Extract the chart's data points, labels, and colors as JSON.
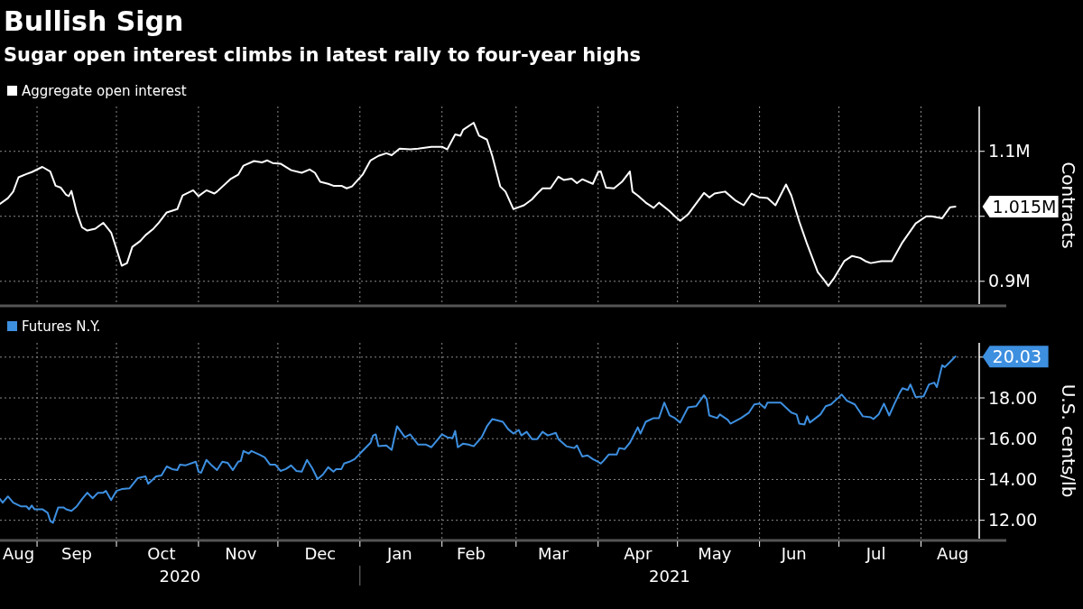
{
  "chart_data": [
    {
      "type": "line",
      "title": "Bullish Sign",
      "subtitle": "Sugar open interest climbs in latest rally to four-year highs",
      "ylabel": "Contracts",
      "legend": "top left",
      "grid": true,
      "tick_labels": "y",
      "xlim": [
        "2020-08-18",
        "2021-08-23"
      ],
      "ylim": [
        865000,
        1169000
      ],
      "yticks": [
        {
          "value": 900000,
          "label": "0.9M"
        },
        {
          "value": 1000000,
          "label": null
        },
        {
          "value": 1100000,
          "label": "1.1M"
        }
      ],
      "xticks": [
        {
          "value": "2020-09-01",
          "label": null
        },
        {
          "value": "2020-10-01",
          "label": null
        },
        {
          "value": "2020-11-01",
          "label": null
        },
        {
          "value": "2020-12-01",
          "label": null
        },
        {
          "value": "2021-01-01",
          "label": null
        },
        {
          "value": "2021-02-01",
          "label": null
        },
        {
          "value": "2021-03-01",
          "label": null
        },
        {
          "value": "2021-04-01",
          "label": null
        },
        {
          "value": "2021-05-01",
          "label": null
        },
        {
          "value": "2021-06-01",
          "label": null
        },
        {
          "value": "2021-07-01",
          "label": null
        },
        {
          "value": "2021-08-01",
          "label": null
        }
      ],
      "annotations": [
        {
          "text": "1.015M",
          "x": "2021-08-14",
          "y": 1015000
        }
      ],
      "series": [
        {
          "name": "Aggregate open interest",
          "color": "#ffffff",
          "x": [
            "2020-08-18",
            "2020-08-21",
            "2020-08-23",
            "2020-08-25",
            "2020-08-28",
            "2020-08-30",
            "2020-09-03",
            "2020-09-06",
            "2020-09-08",
            "2020-09-10",
            "2020-09-12",
            "2020-09-13",
            "2020-09-14",
            "2020-09-16",
            "2020-09-18",
            "2020-09-20",
            "2020-09-23",
            "2020-09-26",
            "2020-09-29",
            "2020-10-01",
            "2020-10-03",
            "2020-10-05",
            "2020-10-07",
            "2020-10-10",
            "2020-10-12",
            "2020-10-15",
            "2020-10-17",
            "2020-10-20",
            "2020-10-24",
            "2020-10-26",
            "2020-10-30",
            "2020-11-01",
            "2020-11-04",
            "2020-11-07",
            "2020-11-08",
            "2020-11-13",
            "2020-11-16",
            "2020-11-18",
            "2020-11-22",
            "2020-11-25",
            "2020-11-27",
            "2020-11-29",
            "2020-12-02",
            "2020-12-06",
            "2020-12-10",
            "2020-12-13",
            "2020-12-15",
            "2020-12-17",
            "2020-12-20",
            "2020-12-22",
            "2020-12-25",
            "2020-12-27",
            "2020-12-29",
            "2021-01-02",
            "2021-01-05",
            "2021-01-08",
            "2021-01-11",
            "2021-01-13",
            "2021-01-16",
            "2021-01-20",
            "2021-01-23",
            "2021-01-28",
            "2021-02-01",
            "2021-02-03",
            "2021-02-06",
            "2021-02-08",
            "2021-02-09",
            "2021-02-13",
            "2021-02-15",
            "2021-02-18",
            "2021-02-20",
            "2021-02-23",
            "2021-02-25",
            "2021-02-28",
            "2021-03-02",
            "2021-03-04",
            "2021-03-07",
            "2021-03-09",
            "2021-03-11",
            "2021-03-14",
            "2021-03-17",
            "2021-03-19",
            "2021-03-22",
            "2021-03-24",
            "2021-03-26",
            "2021-03-30",
            "2021-04-01",
            "2021-04-02",
            "2021-04-04",
            "2021-04-07",
            "2021-04-10",
            "2021-04-13",
            "2021-04-14",
            "2021-04-16",
            "2021-04-19",
            "2021-04-22",
            "2021-04-24",
            "2021-04-28",
            "2021-04-30",
            "2021-05-02",
            "2021-05-05",
            "2021-05-07",
            "2021-05-11",
            "2021-05-13",
            "2021-05-15",
            "2021-05-19",
            "2021-05-23",
            "2021-05-26",
            "2021-05-29",
            "2021-06-01",
            "2021-06-04",
            "2021-06-07",
            "2021-06-11",
            "2021-06-13",
            "2021-06-16",
            "2021-06-19",
            "2021-06-23",
            "2021-06-25",
            "2021-06-27",
            "2021-06-29",
            "2021-07-03",
            "2021-07-06",
            "2021-07-09",
            "2021-07-11",
            "2021-07-13",
            "2021-07-17",
            "2021-07-21",
            "2021-07-25",
            "2021-07-30",
            "2021-08-03",
            "2021-08-05",
            "2021-08-09",
            "2021-08-12",
            "2021-08-14"
          ],
          "values": [
            1019000,
            1028000,
            1038000,
            1060000,
            1065000,
            1068000,
            1076000,
            1069000,
            1047000,
            1044000,
            1033000,
            1031000,
            1039000,
            1006000,
            983000,
            978000,
            981000,
            990000,
            975000,
            950000,
            924000,
            928000,
            953000,
            962000,
            971000,
            981000,
            990000,
            1006000,
            1011000,
            1032000,
            1040000,
            1031000,
            1040000,
            1035000,
            1038000,
            1057000,
            1064000,
            1078000,
            1085000,
            1083000,
            1086000,
            1082000,
            1081000,
            1071000,
            1067000,
            1072000,
            1067000,
            1053000,
            1050000,
            1047000,
            1047000,
            1043000,
            1046000,
            1064000,
            1086000,
            1093000,
            1097000,
            1094000,
            1104000,
            1103000,
            1104000,
            1107000,
            1107000,
            1103000,
            1126000,
            1124000,
            1133000,
            1144000,
            1124000,
            1118000,
            1093000,
            1046000,
            1038000,
            1011000,
            1014000,
            1017000,
            1026000,
            1035000,
            1043000,
            1043000,
            1061000,
            1056000,
            1058000,
            1051000,
            1057000,
            1050000,
            1068000,
            1069000,
            1044000,
            1043000,
            1053000,
            1069000,
            1038000,
            1032000,
            1021000,
            1013000,
            1021000,
            1008000,
            1000000,
            993000,
            1003000,
            1014000,
            1036000,
            1029000,
            1035000,
            1038000,
            1024000,
            1017000,
            1035000,
            1029000,
            1028000,
            1017000,
            1049000,
            1032000,
            992000,
            957000,
            914000,
            904000,
            893000,
            904000,
            931000,
            939000,
            936000,
            931000,
            928000,
            931000,
            931000,
            960000,
            989000,
            1000000,
            1000000,
            997000,
            1014000,
            1015000
          ]
        }
      ]
    },
    {
      "type": "line",
      "ylabel": "U.S. cents/lb",
      "legend": "top left",
      "grid": true,
      "xlim": [
        "2020-08-18",
        "2021-08-23"
      ],
      "ylim": [
        11.1,
        20.7
      ],
      "yticks": [
        {
          "value": 12,
          "label": "12.00"
        },
        {
          "value": 14,
          "label": "14.00"
        },
        {
          "value": 16,
          "label": "16.00"
        },
        {
          "value": 18,
          "label": "18.00"
        },
        {
          "value": 20,
          "label": null
        }
      ],
      "xticks": [
        {
          "value": "2020-08-25",
          "label": "Aug"
        },
        {
          "value": "2020-09-01",
          "label": null
        },
        {
          "value": "2020-09-16",
          "label": "Sep"
        },
        {
          "value": "2020-10-01",
          "label": null
        },
        {
          "value": "2020-10-18",
          "label": "Oct"
        },
        {
          "value": "2020-11-01",
          "label": null
        },
        {
          "value": "2020-11-17",
          "label": "Nov"
        },
        {
          "value": "2020-12-01",
          "label": null
        },
        {
          "value": "2020-12-17",
          "label": "Dec"
        },
        {
          "value": "2021-01-01",
          "label": null
        },
        {
          "value": "2021-01-16",
          "label": "Jan"
        },
        {
          "value": "2021-02-01",
          "label": null
        },
        {
          "value": "2021-02-12",
          "label": "Feb"
        },
        {
          "value": "2021-03-01",
          "label": null
        },
        {
          "value": "2021-03-15",
          "label": "Mar"
        },
        {
          "value": "2021-04-01",
          "label": null
        },
        {
          "value": "2021-04-16",
          "label": "Apr"
        },
        {
          "value": "2021-05-01",
          "label": null
        },
        {
          "value": "2021-05-15",
          "label": "May"
        },
        {
          "value": "2021-06-01",
          "label": null
        },
        {
          "value": "2021-06-14",
          "label": "Jun"
        },
        {
          "value": "2021-07-01",
          "label": null
        },
        {
          "value": "2021-07-15",
          "label": "Jul"
        },
        {
          "value": "2021-08-01",
          "label": null
        },
        {
          "value": "2021-08-13",
          "label": "Aug"
        }
      ],
      "annotations": [
        {
          "text": "20.03",
          "x": "2021-08-14",
          "y": 20.03
        },
        "2020",
        "2021"
      ],
      "series": [
        {
          "name": "Futures N.Y.",
          "color": "#3d8fe0",
          "x": [
            "2020-08-18",
            "2020-08-19",
            "2020-08-21",
            "2020-08-23",
            "2020-08-26",
            "2020-08-28",
            "2020-08-29",
            "2020-08-30",
            "2020-08-31",
            "2020-09-03",
            "2020-09-05",
            "2020-09-06",
            "2020-09-07",
            "2020-09-09",
            "2020-09-11",
            "2020-09-12",
            "2020-09-14",
            "2020-09-16",
            "2020-09-18",
            "2020-09-20",
            "2020-09-22",
            "2020-09-24",
            "2020-09-26",
            "2020-09-27",
            "2020-09-29",
            "2020-10-01",
            "2020-10-03",
            "2020-10-06",
            "2020-10-09",
            "2020-10-12",
            "2020-10-13",
            "2020-10-16",
            "2020-10-18",
            "2020-10-20",
            "2020-10-22",
            "2020-10-24",
            "2020-10-25",
            "2020-10-27",
            "2020-10-31",
            "2020-11-01",
            "2020-11-02",
            "2020-11-04",
            "2020-11-06",
            "2020-11-08",
            "2020-11-10",
            "2020-11-12",
            "2020-11-14",
            "2020-11-16",
            "2020-11-17",
            "2020-11-18",
            "2020-11-20",
            "2020-11-21",
            "2020-11-24",
            "2020-11-26",
            "2020-11-28",
            "2020-11-30",
            "2020-12-02",
            "2020-12-04",
            "2020-12-06",
            "2020-12-08",
            "2020-12-10",
            "2020-12-12",
            "2020-12-14",
            "2020-12-16",
            "2020-12-18",
            "2020-12-20",
            "2020-12-22",
            "2020-12-23",
            "2020-12-25",
            "2020-12-26",
            "2020-12-28",
            "2020-12-30",
            "2021-01-02",
            "2021-01-05",
            "2021-01-06",
            "2021-01-07",
            "2021-01-08",
            "2021-01-11",
            "2021-01-13",
            "2021-01-15",
            "2021-01-18",
            "2021-01-20",
            "2021-01-23",
            "2021-01-26",
            "2021-01-28",
            "2021-02-01",
            "2021-02-03",
            "2021-02-05",
            "2021-02-06",
            "2021-02-07",
            "2021-02-09",
            "2021-02-11",
            "2021-02-13",
            "2021-02-16",
            "2021-02-18",
            "2021-02-20",
            "2021-02-24",
            "2021-02-26",
            "2021-02-28",
            "2021-03-02",
            "2021-03-03",
            "2021-03-05",
            "2021-03-07",
            "2021-03-09",
            "2021-03-11",
            "2021-03-13",
            "2021-03-16",
            "2021-03-17",
            "2021-03-20",
            "2021-03-23",
            "2021-03-24",
            "2021-03-26",
            "2021-03-28",
            "2021-03-30",
            "2021-04-01",
            "2021-04-02",
            "2021-04-03",
            "2021-04-05",
            "2021-04-08",
            "2021-04-09",
            "2021-04-11",
            "2021-04-13",
            "2021-04-16",
            "2021-04-17",
            "2021-04-19",
            "2021-04-22",
            "2021-04-24",
            "2021-04-26",
            "2021-04-28",
            "2021-04-30",
            "2021-05-02",
            "2021-05-05",
            "2021-05-08",
            "2021-05-11",
            "2021-05-12",
            "2021-05-13",
            "2021-05-16",
            "2021-05-17",
            "2021-05-20",
            "2021-05-21",
            "2021-05-25",
            "2021-05-28",
            "2021-05-30",
            "2021-06-01",
            "2021-06-03",
            "2021-06-04",
            "2021-06-06",
            "2021-06-09",
            "2021-06-13",
            "2021-06-15",
            "2021-06-16",
            "2021-06-18",
            "2021-06-19",
            "2021-06-20",
            "2021-06-24",
            "2021-06-26",
            "2021-06-28",
            "2021-07-01",
            "2021-07-02",
            "2021-07-04",
            "2021-07-07",
            "2021-07-10",
            "2021-07-13",
            "2021-07-14",
            "2021-07-16",
            "2021-07-18",
            "2021-07-20",
            "2021-07-22",
            "2021-07-24",
            "2021-07-25",
            "2021-07-27",
            "2021-07-28",
            "2021-07-30",
            "2021-08-02",
            "2021-08-04",
            "2021-08-06",
            "2021-08-07",
            "2021-08-09",
            "2021-08-10",
            "2021-08-11",
            "2021-08-14"
          ],
          "values": [
            13.04,
            12.86,
            13.17,
            12.86,
            12.68,
            12.68,
            12.54,
            12.72,
            12.54,
            12.54,
            12.37,
            11.96,
            11.88,
            12.63,
            12.63,
            12.54,
            12.46,
            12.68,
            13.04,
            13.35,
            13.08,
            13.35,
            13.35,
            13.44,
            12.99,
            13.44,
            13.53,
            13.57,
            14.06,
            14.15,
            13.79,
            14.15,
            14.2,
            14.64,
            14.51,
            14.46,
            14.73,
            14.69,
            14.87,
            14.38,
            14.33,
            14.96,
            14.69,
            14.46,
            14.87,
            14.82,
            14.46,
            14.87,
            14.91,
            15.4,
            15.27,
            15.4,
            15.22,
            15.09,
            14.73,
            14.73,
            14.42,
            14.51,
            14.69,
            14.42,
            14.38,
            14.96,
            14.55,
            14.02,
            14.24,
            14.6,
            14.38,
            14.51,
            14.51,
            14.78,
            14.87,
            15.0,
            15.4,
            15.8,
            16.16,
            16.21,
            15.63,
            15.67,
            15.45,
            16.61,
            16.07,
            16.21,
            15.71,
            15.71,
            15.58,
            16.21,
            16.07,
            16.03,
            16.38,
            15.58,
            15.76,
            15.71,
            15.63,
            16.07,
            16.61,
            16.96,
            16.83,
            16.47,
            16.25,
            16.43,
            16.16,
            16.34,
            15.98,
            15.98,
            16.34,
            16.16,
            16.29,
            15.98,
            15.63,
            15.54,
            15.67,
            15.13,
            15.18,
            15.0,
            14.87,
            14.78,
            14.91,
            15.22,
            15.22,
            15.54,
            15.49,
            15.8,
            16.56,
            16.25,
            16.83,
            17.01,
            17.01,
            17.77,
            17.14,
            17.01,
            16.79,
            17.54,
            17.59,
            18.13,
            17.95,
            17.14,
            17.01,
            17.19,
            16.92,
            16.74,
            17.01,
            17.28,
            17.68,
            17.72,
            17.5,
            17.77,
            17.77,
            17.77,
            17.28,
            17.19,
            16.74,
            16.7,
            17.1,
            16.79,
            17.19,
            17.59,
            17.68,
            18.04,
            18.17,
            17.86,
            17.68,
            17.1,
            17.05,
            16.96,
            17.19,
            17.72,
            17.14,
            17.72,
            18.26,
            18.48,
            18.39,
            18.66,
            18.04,
            18.08,
            18.66,
            18.75,
            18.53,
            19.6,
            19.51,
            19.64,
            20.03
          ]
        }
      ]
    }
  ]
}
